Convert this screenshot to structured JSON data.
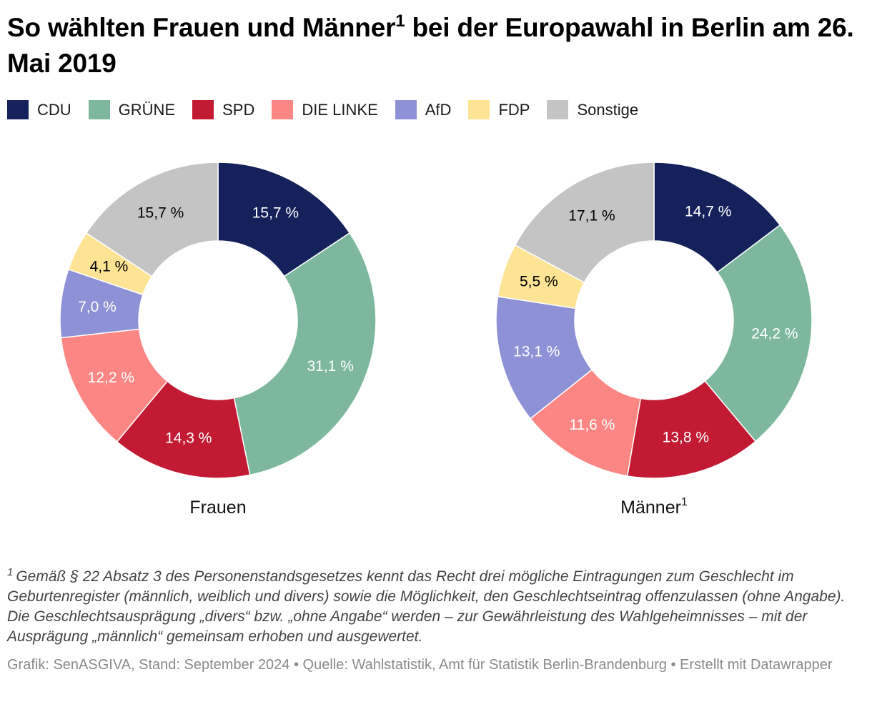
{
  "title": {
    "main": "So wählten Frauen und Männer",
    "sup": "1",
    "rest": " bei der Europawahl in Berlin am 26. Mai 2019"
  },
  "legend": [
    {
      "label": "CDU",
      "color": "#14215a"
    },
    {
      "label": "GRÜNE",
      "color": "#7db89e"
    },
    {
      "label": "SPD",
      "color": "#c31a33"
    },
    {
      "label": "DIE LINKE",
      "color": "#fc8683"
    },
    {
      "label": "AfD",
      "color": "#8d91d5"
    },
    {
      "label": "FDP",
      "color": "#fde394"
    },
    {
      "label": "Sonstige",
      "color": "#c4c4c4"
    }
  ],
  "chart_data": [
    {
      "type": "pie",
      "variant": "donut",
      "title": "Frauen",
      "title_sup": "",
      "categories": [
        "CDU",
        "GRÜNE",
        "SPD",
        "DIE LINKE",
        "AfD",
        "FDP",
        "Sonstige"
      ],
      "values": [
        15.7,
        31.1,
        14.3,
        12.2,
        7.0,
        4.1,
        15.7
      ],
      "labels": [
        "15,7 %",
        "31,1 %",
        "14,3 %",
        "12,2 %",
        "7,0 %",
        "4,1 %",
        "15,7 %"
      ]
    },
    {
      "type": "pie",
      "variant": "donut",
      "title": "Männer",
      "title_sup": "1",
      "categories": [
        "CDU",
        "GRÜNE",
        "SPD",
        "DIE LINKE",
        "AfD",
        "FDP",
        "Sonstige"
      ],
      "values": [
        14.7,
        24.2,
        13.8,
        11.6,
        13.1,
        5.5,
        17.1
      ],
      "labels": [
        "14,7 %",
        "24,2 %",
        "13,8 %",
        "11,6 %",
        "13,1 %",
        "5,5 %",
        "17,1 %"
      ]
    }
  ],
  "label_colors": {
    "CDU": "#ffffff",
    "GRÜNE": "#ffffff",
    "SPD": "#ffffff",
    "DIE LINKE": "#ffffff",
    "AfD": "#ffffff",
    "FDP": "#000000",
    "Sonstige": "#000000"
  },
  "footnote": {
    "marker": "1",
    "text": "Gemäß § 22 Absatz 3 des Personenstandsgesetzes kennt das Recht drei mögliche Eintragungen zum Geschlecht im Geburtenregister (männlich, weiblich und divers) sowie die Möglichkeit, den Geschlechtseintrag offenzulassen (ohne Angabe). Die Geschlechtsausprägung „divers“ bzw. „ohne Angabe“ werden – zur Gewährleistung des Wahlgeheimnisses – mit der Ausprägung „männlich“ gemeinsam erhoben und ausgewertet."
  },
  "credits": "Grafik: SenASGIVA, Stand: September 2024 • Quelle: Wahlstatistik, Amt für Statistik Berlin-Brandenburg • Erstellt mit Datawrapper"
}
